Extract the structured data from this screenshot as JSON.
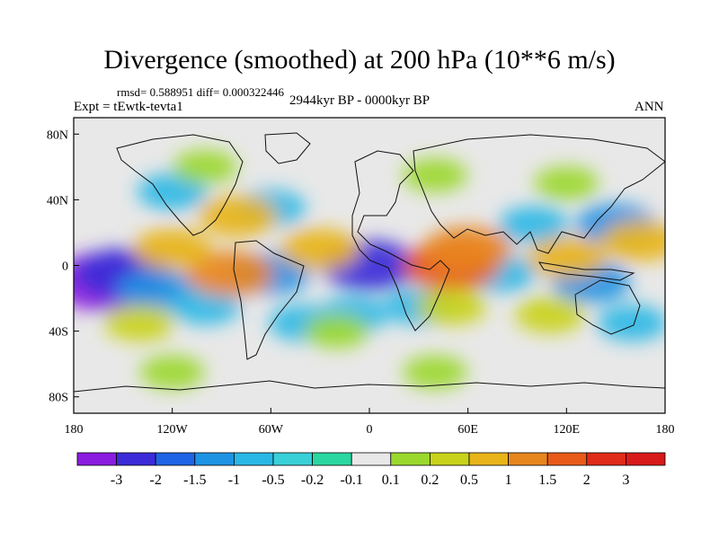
{
  "chart_data": {
    "type": "heatmap",
    "title": "Divergence (smoothed) at 200 hPa (10**6 m/s)",
    "stats_text": "rmsd= 0.588951  diff= 0.000322446",
    "experiment": "Expt = tEwtk-tevta1",
    "period": "2944kyr BP - 0000kyr BP",
    "season": "ANN",
    "x_ticks": [
      "180",
      "120W",
      "60W",
      "0",
      "60E",
      "120E",
      "180"
    ],
    "y_ticks": [
      "80N",
      "40N",
      "0",
      "40S",
      "80S"
    ],
    "xlim": [
      -180,
      180
    ],
    "ylim": [
      -90,
      90
    ],
    "colorbar_labels": [
      "-3",
      "-2",
      "-1.5",
      "-1",
      "-0.5",
      "-0.2",
      "-0.1",
      "0.1",
      "0.2",
      "0.5",
      "1",
      "1.5",
      "2",
      "3"
    ],
    "colors": [
      "#8a1de0",
      "#3b2bd8",
      "#1f64e6",
      "#1e93e3",
      "#2ab8e6",
      "#3ad0d8",
      "#2ad7a0",
      "#e8e8e8",
      "#9bd82e",
      "#c9d21a",
      "#e8b41a",
      "#e8861e",
      "#e85a1a",
      "#e02a1a",
      "#d81a1a"
    ],
    "blobs": [
      {
        "lon": -160,
        "lat": -10,
        "value": -3
      },
      {
        "lon": -150,
        "lat": -5,
        "value": -2
      },
      {
        "lon": -130,
        "lat": -15,
        "value": -1
      },
      {
        "lon": -100,
        "lat": -25,
        "value": -0.5
      },
      {
        "lon": -60,
        "lat": -5,
        "value": -1
      },
      {
        "lon": -40,
        "lat": -35,
        "value": -0.5
      },
      {
        "lon": 0,
        "lat": 0,
        "value": -2
      },
      {
        "lon": -10,
        "lat": -30,
        "value": -0.5
      },
      {
        "lon": 30,
        "lat": -25,
        "value": -0.5
      },
      {
        "lon": 80,
        "lat": -5,
        "value": -0.5
      },
      {
        "lon": 100,
        "lat": 25,
        "value": -0.5
      },
      {
        "lon": 150,
        "lat": 25,
        "value": -1
      },
      {
        "lon": 135,
        "lat": -10,
        "value": -1
      },
      {
        "lon": -60,
        "lat": 35,
        "value": -0.5
      },
      {
        "lon": -120,
        "lat": 45,
        "value": -0.5
      },
      {
        "lon": 160,
        "lat": -35,
        "value": -0.5
      },
      {
        "lon": -85,
        "lat": -5,
        "value": 1.5
      },
      {
        "lon": -120,
        "lat": 10,
        "value": 1
      },
      {
        "lon": -80,
        "lat": 30,
        "value": 1
      },
      {
        "lon": -30,
        "lat": 10,
        "value": 1
      },
      {
        "lon": 50,
        "lat": 0,
        "value": 2
      },
      {
        "lon": 60,
        "lat": 10,
        "value": 1.5
      },
      {
        "lon": 120,
        "lat": 5,
        "value": 1
      },
      {
        "lon": 165,
        "lat": 15,
        "value": 1
      },
      {
        "lon": -140,
        "lat": -35,
        "value": 0.5
      },
      {
        "lon": 50,
        "lat": -25,
        "value": 0.5
      },
      {
        "lon": 110,
        "lat": -30,
        "value": 0.5
      },
      {
        "lon": -20,
        "lat": -40,
        "value": 0.2
      },
      {
        "lon": 40,
        "lat": 55,
        "value": 0.2
      },
      {
        "lon": 120,
        "lat": 50,
        "value": 0.2
      },
      {
        "lon": -100,
        "lat": 60,
        "value": 0.2
      },
      {
        "lon": 40,
        "lat": -65,
        "value": 0.2
      },
      {
        "lon": -120,
        "lat": -65,
        "value": 0.2
      }
    ]
  }
}
